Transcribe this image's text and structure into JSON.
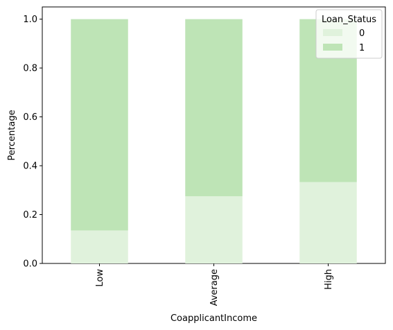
{
  "chart_data": {
    "type": "bar",
    "stacked": true,
    "categories": [
      "Low",
      "Average",
      "High"
    ],
    "series": [
      {
        "name": "0",
        "values": [
          0.135,
          0.275,
          0.333
        ],
        "color": "#e0f2dc"
      },
      {
        "name": "1",
        "values": [
          0.865,
          0.725,
          0.667
        ],
        "color": "#bee4b6"
      }
    ],
    "xlabel": "CoapplicantIncome",
    "ylabel": "Percentage",
    "ylim": [
      0,
      1.05
    ],
    "yticks": [
      0.0,
      0.2,
      0.4,
      0.6,
      0.8,
      1.0
    ],
    "ytick_labels": [
      "0.0",
      "0.2",
      "0.4",
      "0.6",
      "0.8",
      "1.0"
    ],
    "grid": false,
    "legend": {
      "title": "Loan_Status",
      "placement": "top-right"
    }
  }
}
